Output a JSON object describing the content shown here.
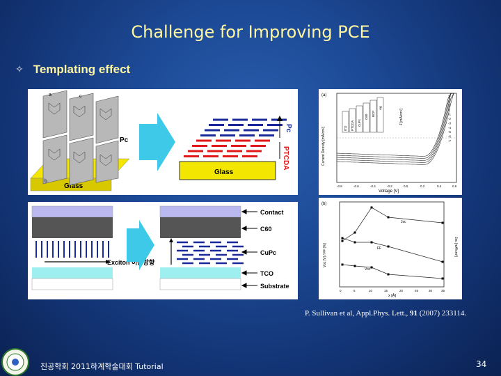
{
  "slide": {
    "title": "Challenge for Improving PCE",
    "bullet_icon": "diamond-star-bullet-icon",
    "bullet_text": "Templating effect"
  },
  "figure_top_left": {
    "label_pc_molecule": "Pc",
    "label_glass_left": "Glass",
    "label_glass_right": "Glass",
    "label_pc_stack": "Pc",
    "label_ptcda": "PTCDA",
    "marker_a": "a",
    "marker_b": "b",
    "marker_c": "c"
  },
  "figure_bottom_left": {
    "labels": [
      "Contact",
      "C60",
      "CuPc",
      "TCO",
      "Substrate"
    ],
    "exciton_label": "Exciton 이동방향"
  },
  "figure_jv": {
    "panel_label": "(a)",
    "ylabel": "Current Density [mA/cm²]",
    "xlabel": "Voltage [V]",
    "y2label": "J [mA/cm²]",
    "x_ticks": [
      "-0.8",
      "-0.6",
      "-0.4",
      "-0.2",
      "0.0",
      "0.2",
      "0.4",
      "0.6"
    ],
    "y_ticks": [
      "3",
      "2",
      "1",
      "0",
      "-1",
      "-2",
      "-3",
      "-4",
      "-5",
      "-6",
      "-7"
    ],
    "stack_layers": [
      "ITO",
      "PTCDA",
      "CuPc",
      "C60",
      "BCP",
      "Ag"
    ]
  },
  "figure_vs_x": {
    "panel_label": "(b)",
    "xlabel": "x [Å]",
    "ylabel_left": "Voc [V] / FF [%]",
    "ylabel_right": "Jsc [mA/cm²]",
    "series_labels": [
      "Jsc",
      "FF",
      "Voc"
    ],
    "x_ticks": [
      "0",
      "5",
      "10",
      "15",
      "20",
      "25",
      "30",
      "35"
    ]
  },
  "citation": {
    "authors": "P. Sullivan et al, Appl.Phys. Lett., ",
    "volume": "91",
    "rest": " (2007) 233114."
  },
  "footer": {
    "text": "진공학회 2011하계학술대회 Tutorial",
    "page_number": "34",
    "logo_icon": "society-seal-logo-icon"
  },
  "colors": {
    "title": "#fff7a0",
    "pc_layer": "#1a2a9a",
    "ptcda_layer": "#e01818",
    "arrow": "#3fc9e8",
    "glass": "#e8d800"
  }
}
